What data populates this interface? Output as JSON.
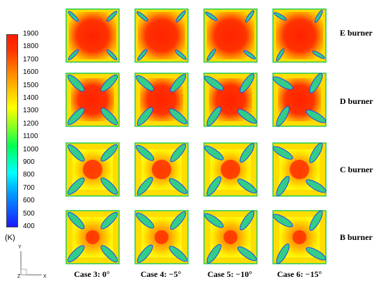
{
  "colorbar": {
    "ticks": [
      "1900",
      "1800",
      "1700",
      "1600",
      "1500",
      "1400",
      "1300",
      "1200",
      "1100",
      "1000",
      "900",
      "800",
      "700",
      "600",
      "500",
      "400"
    ],
    "unit": "(K)",
    "colors": [
      "#1a1aff",
      "#00bfff",
      "#00ff66",
      "#b3ff33",
      "#ffff00",
      "#ff9900",
      "#ff2200"
    ]
  },
  "rows": [
    {
      "label": "E burner"
    },
    {
      "label": "D burner"
    },
    {
      "label": "C burner"
    },
    {
      "label": "B burner"
    }
  ],
  "columns": [
    {
      "label": "Case 3: 0°"
    },
    {
      "label": "Case 4: −5°"
    },
    {
      "label": "Case 5: −10°"
    },
    {
      "label": "Case 6: −15°"
    }
  ],
  "axes": {
    "y": "Y",
    "x": "X",
    "z": "Z"
  }
}
